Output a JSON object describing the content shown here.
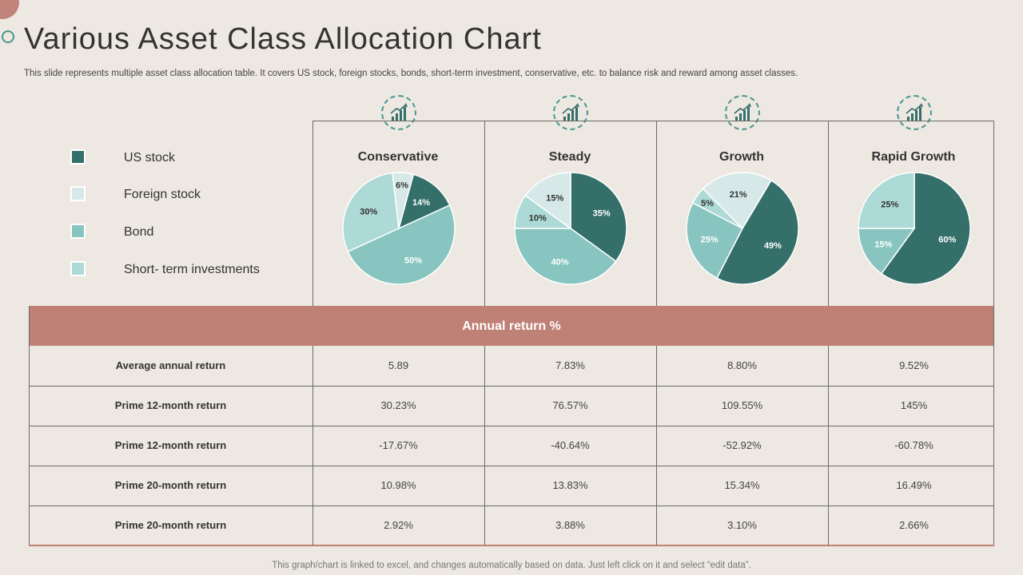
{
  "title": "Various Asset Class Allocation Chart",
  "subtitle": "This slide represents multiple asset class allocation table. It covers US stock, foreign stocks, bonds, short-term investment, conservative, etc. to balance risk and reward among asset classes.",
  "legend": [
    {
      "label": "US stock",
      "color": "#346f6a"
    },
    {
      "label": "Foreign stock",
      "color": "#d6e9e8"
    },
    {
      "label": "Bond",
      "color": "#88c5c0"
    },
    {
      "label": "Short- term investments",
      "color": "#addad6"
    }
  ],
  "icons": [
    "growth-chart-icon",
    "bar-chart-star-icon",
    "growth-chart-icon",
    "growth-chart-icon"
  ],
  "chart_data": [
    {
      "type": "pie",
      "title": "Conservative",
      "categories": [
        "US stock",
        "Foreign stock",
        "Bond",
        "Short- term investments"
      ],
      "values": [
        14,
        6,
        50,
        30
      ],
      "labels": [
        "14%",
        "6%",
        "50%",
        "30%"
      ]
    },
    {
      "type": "pie",
      "title": "Steady",
      "categories": [
        "US stock",
        "Foreign stock",
        "Bond",
        "Short- term investments"
      ],
      "values": [
        35,
        15,
        40,
        10
      ],
      "labels": [
        "35%",
        "15%",
        "40%",
        "10%"
      ]
    },
    {
      "type": "pie",
      "title": "Growth",
      "categories": [
        "US stock",
        "Foreign stock",
        "Bond",
        "Short- term investments"
      ],
      "values": [
        49,
        21,
        25,
        5
      ],
      "labels": [
        "49%",
        "21%",
        "25%",
        "5%"
      ]
    },
    {
      "type": "pie",
      "title": "Rapid Growth",
      "categories": [
        "US stock",
        "Foreign stock",
        "Bond",
        "Short- term investments"
      ],
      "values": [
        60,
        0,
        15,
        25
      ],
      "labels": [
        "60%",
        "",
        "15%",
        "25%"
      ]
    }
  ],
  "table": {
    "header": "Annual return %",
    "rows": [
      {
        "label": "Average annual return",
        "values": [
          "5.89",
          "7.83%",
          "8.80%",
          "9.52%"
        ]
      },
      {
        "label": "Prime 12-month return",
        "values": [
          "30.23%",
          "76.57%",
          "109.55%",
          "145%"
        ]
      },
      {
        "label": "Prime 12-month return",
        "values": [
          "-17.67%",
          "-40.64%",
          "-52.92%",
          "-60.78%"
        ]
      },
      {
        "label": "Prime 20-month return",
        "values": [
          "10.98%",
          "13.83%",
          "15.34%",
          "16.49%"
        ]
      },
      {
        "label": "Prime 20-month return",
        "values": [
          "2.92%",
          "3.88%",
          "3.10%",
          "2.66%"
        ]
      }
    ]
  },
  "footer": "This graph/chart is linked to excel, and changes automatically based on data. Just left click on it and select “edit data”."
}
